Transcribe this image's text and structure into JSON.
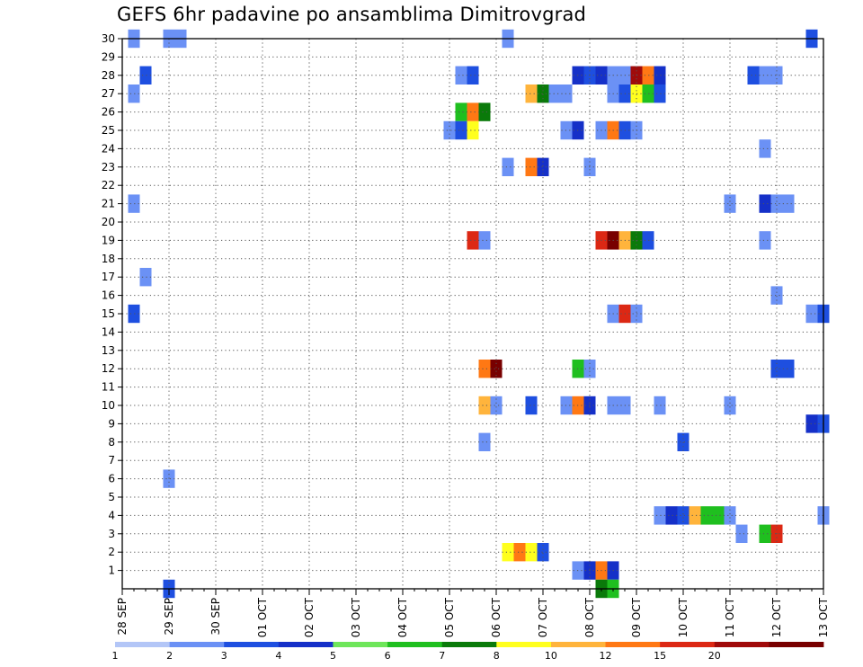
{
  "title": "GEFS 6hr padavine po ansamblima Dimitrovgrad",
  "chart_data": {
    "type": "heatmap",
    "title": "GEFS 6hr padavine po ansamblima Dimitrovgrad",
    "xlabel": "",
    "ylabel": "",
    "x_unit": "6-hour step starting 28 SEP 00Z",
    "x_ticks": [
      "28 SEP",
      "29 SEP",
      "30 SEP",
      "01 OCT",
      "02 OCT",
      "03 OCT",
      "04 OCT",
      "05 OCT",
      "06 OCT",
      "07 OCT",
      "08 OCT",
      "09 OCT",
      "10 OCT",
      "11 OCT",
      "12 OCT",
      "13 OCT"
    ],
    "x_range": [
      0,
      60
    ],
    "y_ticks": [
      1,
      2,
      3,
      4,
      5,
      6,
      7,
      8,
      9,
      10,
      11,
      12,
      13,
      14,
      15,
      16,
      17,
      18,
      19,
      20,
      21,
      22,
      23,
      24,
      25,
      26,
      27,
      28,
      29,
      30
    ],
    "y_range": [
      0,
      30
    ],
    "grid": true,
    "colorbar": {
      "labels": [
        "1",
        "2",
        "3",
        "4",
        "5",
        "6",
        "7",
        "8",
        "10",
        "12",
        "15",
        "20"
      ],
      "colors": [
        "#b3c6f7",
        "#6b91f5",
        "#1e4fe0",
        "#1530c8",
        "#6ee65a",
        "#1fbf1f",
        "#0a7a0a",
        "#ffff1e",
        "#ffb43c",
        "#ff7814",
        "#dc2814",
        "#a00a0a",
        "#780000"
      ]
    },
    "cells": [
      {
        "member": 30,
        "step": 1,
        "level": 1
      },
      {
        "member": 30,
        "step": 4,
        "level": 1
      },
      {
        "member": 30,
        "step": 5,
        "level": 1
      },
      {
        "member": 30,
        "step": 33,
        "level": 1
      },
      {
        "member": 30,
        "step": 59,
        "level": 2
      },
      {
        "member": 28,
        "step": 2,
        "level": 2
      },
      {
        "member": 28,
        "step": 29,
        "level": 1
      },
      {
        "member": 28,
        "step": 30,
        "level": 2
      },
      {
        "member": 28,
        "step": 39,
        "level": 3
      },
      {
        "member": 28,
        "step": 40,
        "level": 2
      },
      {
        "member": 28,
        "step": 41,
        "level": 3
      },
      {
        "member": 28,
        "step": 42,
        "level": 1
      },
      {
        "member": 28,
        "step": 43,
        "level": 1
      },
      {
        "member": 28,
        "step": 44,
        "level": 11
      },
      {
        "member": 28,
        "step": 45,
        "level": 9
      },
      {
        "member": 28,
        "step": 46,
        "level": 3
      },
      {
        "member": 28,
        "step": 54,
        "level": 2
      },
      {
        "member": 28,
        "step": 55,
        "level": 1
      },
      {
        "member": 28,
        "step": 56,
        "level": 1
      },
      {
        "member": 27,
        "step": 1,
        "level": 1
      },
      {
        "member": 27,
        "step": 35,
        "level": 8
      },
      {
        "member": 27,
        "step": 36,
        "level": 6
      },
      {
        "member": 27,
        "step": 37,
        "level": 1
      },
      {
        "member": 27,
        "step": 38,
        "level": 1
      },
      {
        "member": 27,
        "step": 42,
        "level": 1
      },
      {
        "member": 27,
        "step": 43,
        "level": 2
      },
      {
        "member": 27,
        "step": 44,
        "level": 7
      },
      {
        "member": 27,
        "step": 45,
        "level": 5
      },
      {
        "member": 27,
        "step": 46,
        "level": 2
      },
      {
        "member": 26,
        "step": 29,
        "level": 5
      },
      {
        "member": 26,
        "step": 30,
        "level": 9
      },
      {
        "member": 26,
        "step": 31,
        "level": 6
      },
      {
        "member": 25,
        "step": 28,
        "level": 1
      },
      {
        "member": 25,
        "step": 29,
        "level": 2
      },
      {
        "member": 25,
        "step": 30,
        "level": 7
      },
      {
        "member": 25,
        "step": 38,
        "level": 1
      },
      {
        "member": 25,
        "step": 39,
        "level": 3
      },
      {
        "member": 25,
        "step": 41,
        "level": 1
      },
      {
        "member": 25,
        "step": 42,
        "level": 9
      },
      {
        "member": 25,
        "step": 43,
        "level": 2
      },
      {
        "member": 25,
        "step": 44,
        "level": 1
      },
      {
        "member": 24,
        "step": 55,
        "level": 1
      },
      {
        "member": 23,
        "step": 33,
        "level": 1
      },
      {
        "member": 23,
        "step": 35,
        "level": 9
      },
      {
        "member": 23,
        "step": 36,
        "level": 3
      },
      {
        "member": 23,
        "step": 40,
        "level": 1
      },
      {
        "member": 21,
        "step": 1,
        "level": 1
      },
      {
        "member": 21,
        "step": 52,
        "level": 1
      },
      {
        "member": 21,
        "step": 55,
        "level": 3
      },
      {
        "member": 21,
        "step": 56,
        "level": 1
      },
      {
        "member": 21,
        "step": 57,
        "level": 1
      },
      {
        "member": 19,
        "step": 30,
        "level": 10
      },
      {
        "member": 19,
        "step": 31,
        "level": 1
      },
      {
        "member": 19,
        "step": 41,
        "level": 10
      },
      {
        "member": 19,
        "step": 42,
        "level": 12
      },
      {
        "member": 19,
        "step": 43,
        "level": 8
      },
      {
        "member": 19,
        "step": 44,
        "level": 6
      },
      {
        "member": 19,
        "step": 45,
        "level": 2
      },
      {
        "member": 19,
        "step": 55,
        "level": 1
      },
      {
        "member": 17,
        "step": 2,
        "level": 1
      },
      {
        "member": 16,
        "step": 56,
        "level": 1
      },
      {
        "member": 15,
        "step": 1,
        "level": 2
      },
      {
        "member": 15,
        "step": 42,
        "level": 1
      },
      {
        "member": 15,
        "step": 43,
        "level": 10
      },
      {
        "member": 15,
        "step": 44,
        "level": 1
      },
      {
        "member": 15,
        "step": 59,
        "level": 1
      },
      {
        "member": 15,
        "step": 60,
        "level": 2
      },
      {
        "member": 12,
        "step": 31,
        "level": 9
      },
      {
        "member": 12,
        "step": 32,
        "level": 12
      },
      {
        "member": 12,
        "step": 39,
        "level": 5
      },
      {
        "member": 12,
        "step": 40,
        "level": 1
      },
      {
        "member": 12,
        "step": 56,
        "level": 2
      },
      {
        "member": 12,
        "step": 57,
        "level": 2
      },
      {
        "member": 10,
        "step": 31,
        "level": 8
      },
      {
        "member": 10,
        "step": 32,
        "level": 1
      },
      {
        "member": 10,
        "step": 35,
        "level": 2
      },
      {
        "member": 10,
        "step": 38,
        "level": 1
      },
      {
        "member": 10,
        "step": 39,
        "level": 9
      },
      {
        "member": 10,
        "step": 40,
        "level": 3
      },
      {
        "member": 10,
        "step": 42,
        "level": 1
      },
      {
        "member": 10,
        "step": 43,
        "level": 1
      },
      {
        "member": 10,
        "step": 46,
        "level": 1
      },
      {
        "member": 10,
        "step": 52,
        "level": 1
      },
      {
        "member": 9,
        "step": 59,
        "level": 3
      },
      {
        "member": 9,
        "step": 60,
        "level": 2
      },
      {
        "member": 8,
        "step": 31,
        "level": 1
      },
      {
        "member": 8,
        "step": 48,
        "level": 2
      },
      {
        "member": 6,
        "step": 4,
        "level": 1
      },
      {
        "member": 4,
        "step": 46,
        "level": 1
      },
      {
        "member": 4,
        "step": 47,
        "level": 3
      },
      {
        "member": 4,
        "step": 48,
        "level": 2
      },
      {
        "member": 4,
        "step": 49,
        "level": 8
      },
      {
        "member": 4,
        "step": 50,
        "level": 5
      },
      {
        "member": 4,
        "step": 51,
        "level": 5
      },
      {
        "member": 4,
        "step": 52,
        "level": 1
      },
      {
        "member": 4,
        "step": 60,
        "level": 1
      },
      {
        "member": 3,
        "step": 53,
        "level": 1
      },
      {
        "member": 3,
        "step": 55,
        "level": 5
      },
      {
        "member": 3,
        "step": 56,
        "level": 10
      },
      {
        "member": 2,
        "step": 33,
        "level": 7
      },
      {
        "member": 2,
        "step": 34,
        "level": 9
      },
      {
        "member": 2,
        "step": 35,
        "level": 7
      },
      {
        "member": 2,
        "step": 36,
        "level": 2
      },
      {
        "member": 1,
        "step": 39,
        "level": 1
      },
      {
        "member": 1,
        "step": 40,
        "level": 3
      },
      {
        "member": 1,
        "step": 41,
        "level": 9
      },
      {
        "member": 1,
        "step": 42,
        "level": 3
      },
      {
        "member": 0,
        "step": 4,
        "level": 2
      },
      {
        "member": 0,
        "step": 41,
        "level": 6
      },
      {
        "member": 0,
        "step": 42,
        "level": 5
      }
    ]
  }
}
